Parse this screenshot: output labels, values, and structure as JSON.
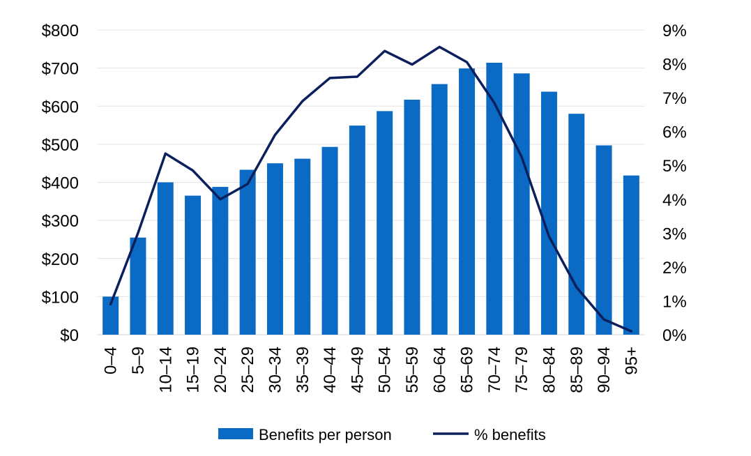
{
  "chart_data": {
    "type": "bar",
    "categories": [
      "0–4",
      "5–9",
      "10–14",
      "15–19",
      "20–24",
      "25–29",
      "30–34",
      "35–39",
      "40–44",
      "45–49",
      "50–54",
      "55–59",
      "60–64",
      "65–69",
      "70–74",
      "75–79",
      "80–84",
      "85–89",
      "90–94",
      "95+"
    ],
    "series": [
      {
        "name": "Benefits per person",
        "type": "bar",
        "axis": "left",
        "color": "#0B6BC4",
        "values": [
          100,
          255,
          400,
          365,
          388,
          433,
          450,
          462,
          493,
          549,
          587,
          617,
          658,
          699,
          714,
          686,
          638,
          580,
          497,
          418
        ]
      },
      {
        "name": "% benefits",
        "type": "line",
        "axis": "right",
        "color": "#0B1F5C",
        "values": [
          0.9,
          3.0,
          5.35,
          4.85,
          4.0,
          4.45,
          5.9,
          6.9,
          7.58,
          7.62,
          8.38,
          7.98,
          8.5,
          8.05,
          6.85,
          5.25,
          2.9,
          1.4,
          0.45,
          0.1
        ]
      }
    ],
    "y_left": {
      "ylim": [
        0,
        800
      ],
      "ticks": [
        0,
        100,
        200,
        300,
        400,
        500,
        600,
        700,
        800
      ],
      "tick_labels": [
        "$0",
        "$100",
        "$200",
        "$300",
        "$400",
        "$500",
        "$600",
        "$700",
        "$800"
      ]
    },
    "y_right": {
      "ylim": [
        0,
        9
      ],
      "ticks": [
        0,
        1,
        2,
        3,
        4,
        5,
        6,
        7,
        8,
        9
      ],
      "tick_labels": [
        "0%",
        "1%",
        "2%",
        "3%",
        "4%",
        "5%",
        "6%",
        "7%",
        "8%",
        "9%"
      ]
    },
    "grid": true,
    "legend_position": "bottom",
    "title": "",
    "xlabel": "",
    "ylabel": ""
  }
}
